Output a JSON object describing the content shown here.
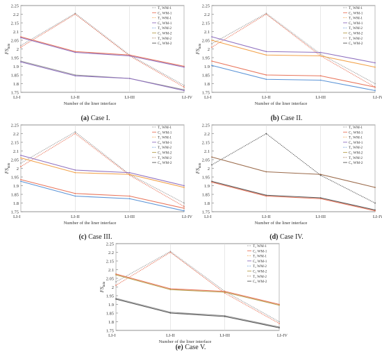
{
  "figure": {
    "captions": [
      {
        "letter": "(a)",
        "text": "Case I."
      },
      {
        "letter": "(b)",
        "text": "Case II."
      },
      {
        "letter": "(c)",
        "text": "Case III."
      },
      {
        "letter": "(d)",
        "text": "Case IV."
      },
      {
        "letter": "(e)",
        "text": "Case V."
      }
    ]
  },
  "colors": {
    "gray": "#9a9a9a",
    "dark_gray": "#555555",
    "red": "#e8745a",
    "orange": "#f2a24a",
    "purple": "#8e6fbf",
    "blue": "#5a93d6",
    "olive": "#b8a050",
    "brown": "#9a6a4a"
  },
  "chart_data": [
    {
      "type": "line",
      "panel": "a",
      "xlabel": "Number of the liner interface",
      "ylabel": "FS",
      "ylabel_sub": "min",
      "categories": [
        "LI-I",
        "LI-II",
        "LI-III",
        "LI-IV"
      ],
      "ylim": [
        1.75,
        2.25
      ],
      "yticks": [
        "1.75",
        "1.8",
        "1.85",
        "1.9",
        "1.95",
        "2",
        "2.05",
        "2.1",
        "2.15",
        "2.2",
        "2.25"
      ],
      "legend_position": "top-right",
      "legend": [
        "T₂ WM-1",
        "C₂ WM-1",
        "T₃ WM-1",
        "C₃ WM-1",
        "T₂ WM-2",
        "C₂ WM-2",
        "T₃ WM-2",
        "C₃ WM-2"
      ],
      "series": [
        {
          "color": "gray",
          "dash": true,
          "values": [
            2.02,
            2.205,
            1.965,
            1.79
          ]
        },
        {
          "color": "red",
          "dash": true,
          "values": [
            2.01,
            2.2,
            1.96,
            1.78
          ]
        },
        {
          "color": "red",
          "dash": false,
          "values": [
            2.07,
            1.985,
            1.965,
            1.9
          ]
        },
        {
          "color": "purple",
          "dash": false,
          "values": [
            2.065,
            1.98,
            1.96,
            1.895
          ]
        },
        {
          "color": "gray",
          "dash": false,
          "values": [
            1.93,
            1.85,
            1.83,
            1.765
          ]
        },
        {
          "color": "purple",
          "dash": false,
          "values": [
            1.925,
            1.845,
            1.83,
            1.76
          ]
        }
      ]
    },
    {
      "type": "line",
      "panel": "b",
      "xlabel": "Number of the liner interface",
      "ylabel": "FS",
      "ylabel_sub": "min",
      "categories": [
        "LI-I",
        "LI-II",
        "LI-III",
        "LI-IV"
      ],
      "ylim": [
        1.75,
        2.25
      ],
      "yticks": [
        "1.75",
        "1.8",
        "1.85",
        "1.9",
        "1.95",
        "2",
        "2.05",
        "2.1",
        "2.15",
        "2.2",
        "2.25"
      ],
      "legend_position": "top-right",
      "legend": [
        "T₂ WM-1",
        "C₂ WM-1",
        "T₃ WM-1",
        "C₃ WM-1",
        "T₂ WM-2",
        "C₂ WM-2",
        "T₃ WM-2",
        "C₃ WM-2"
      ],
      "series": [
        {
          "color": "gray",
          "dash": true,
          "values": [
            2.03,
            2.205,
            1.97,
            1.8
          ]
        },
        {
          "color": "red",
          "dash": true,
          "values": [
            2.01,
            2.2,
            1.96,
            1.78
          ]
        },
        {
          "color": "purple",
          "dash": false,
          "values": [
            2.07,
            1.985,
            1.98,
            1.92
          ]
        },
        {
          "color": "orange",
          "dash": false,
          "values": [
            2.05,
            1.965,
            1.96,
            1.895
          ]
        },
        {
          "color": "red",
          "dash": false,
          "values": [
            1.93,
            1.85,
            1.845,
            1.78
          ]
        },
        {
          "color": "blue",
          "dash": false,
          "values": [
            1.905,
            1.825,
            1.82,
            1.76
          ]
        }
      ]
    },
    {
      "type": "line",
      "panel": "c",
      "xlabel": "Number of the liner interface",
      "ylabel": "FS",
      "ylabel_sub": "min",
      "categories": [
        "LI-I",
        "LI-II",
        "LI-III",
        "LI-IV"
      ],
      "ylim": [
        1.75,
        2.25
      ],
      "yticks": [
        "1.75",
        "1.8",
        "1.85",
        "1.9",
        "1.95",
        "2",
        "2.05",
        "2.1",
        "2.15",
        "2.2",
        "2.25"
      ],
      "legend_position": "top-right",
      "legend": [
        "T₂ WM-1",
        "C₂ WM-1",
        "T₃ WM-1",
        "C₃ WM-1",
        "T₂ WM-2",
        "C₂ WM-2",
        "T₃ WM-2",
        "C₃ WM-2"
      ],
      "series": [
        {
          "color": "gray",
          "dash": true,
          "values": [
            2.03,
            2.21,
            1.965,
            1.8
          ]
        },
        {
          "color": "red",
          "dash": true,
          "values": [
            2.01,
            2.2,
            1.96,
            1.78
          ]
        },
        {
          "color": "purple",
          "dash": false,
          "values": [
            2.075,
            1.99,
            1.975,
            1.9
          ]
        },
        {
          "color": "orange",
          "dash": false,
          "values": [
            2.06,
            1.975,
            1.965,
            1.89
          ]
        },
        {
          "color": "red",
          "dash": false,
          "values": [
            1.935,
            1.855,
            1.84,
            1.77
          ]
        },
        {
          "color": "blue",
          "dash": false,
          "values": [
            1.925,
            1.84,
            1.825,
            1.755
          ]
        }
      ]
    },
    {
      "type": "line",
      "panel": "d",
      "xlabel": "Number of the liner interface",
      "ylabel": "FS",
      "ylabel_sub": "min",
      "categories": [
        "LI-I",
        "LI-II",
        "LI-III",
        "LI-IV"
      ],
      "ylim": [
        1.75,
        2.25
      ],
      "yticks": [
        "1.75",
        "1.8",
        "1.85",
        "1.9",
        "1.95",
        "2",
        "2.05",
        "2.1",
        "2.15",
        "2.2",
        "2.25"
      ],
      "legend_position": "top-right",
      "legend": [
        "T₂ WM-1",
        "C₂ WM-1",
        "T₃ WM-1",
        "C₃ WM-1",
        "T₂ WM-2",
        "C₂ WM-2",
        "T₃ WM-2",
        "C₃ WM-2"
      ],
      "series": [
        {
          "color": "dark_gray",
          "dash": true,
          "values": [
            2.02,
            2.2,
            1.96,
            1.8
          ]
        },
        {
          "color": "brown",
          "dash": false,
          "values": [
            2.065,
            1.98,
            1.965,
            1.89
          ]
        },
        {
          "color": "dark_gray",
          "dash": false,
          "values": [
            1.925,
            1.845,
            1.83,
            1.76
          ]
        },
        {
          "color": "red",
          "dash": false,
          "values": [
            1.92,
            1.84,
            1.825,
            1.755
          ]
        }
      ]
    },
    {
      "type": "line",
      "panel": "e",
      "xlabel": "Number of the liner interface",
      "ylabel": "FS",
      "ylabel_sub": "min",
      "categories": [
        "LI-I",
        "LI-II",
        "LI-III",
        "LI-IV"
      ],
      "ylim": [
        1.75,
        2.25
      ],
      "yticks": [
        "1.75",
        "1.8",
        "1.85",
        "1.9",
        "1.95",
        "2",
        "2.05",
        "2.1",
        "2.15",
        "2.2",
        "2.25"
      ],
      "legend_position": "top-right",
      "legend": [
        "T₂ WM-1",
        "C₂ WM-1",
        "T₃ WM-1",
        "C₃ WM-1",
        "T₂ WM-2",
        "C₂ WM-2",
        "T₃ WM-2",
        "C₃ WM-2"
      ],
      "series": [
        {
          "color": "gray",
          "dash": true,
          "values": [
            2.03,
            2.205,
            1.975,
            1.8
          ]
        },
        {
          "color": "red",
          "dash": true,
          "values": [
            2.01,
            2.2,
            1.965,
            1.79
          ]
        },
        {
          "color": "red",
          "dash": false,
          "values": [
            2.075,
            1.99,
            1.975,
            1.9
          ]
        },
        {
          "color": "olive",
          "dash": false,
          "values": [
            2.07,
            1.985,
            1.97,
            1.895
          ]
        },
        {
          "color": "gray",
          "dash": false,
          "values": [
            1.935,
            1.855,
            1.835,
            1.77
          ]
        },
        {
          "color": "dark_gray",
          "dash": false,
          "values": [
            1.93,
            1.85,
            1.83,
            1.765
          ]
        }
      ]
    }
  ]
}
